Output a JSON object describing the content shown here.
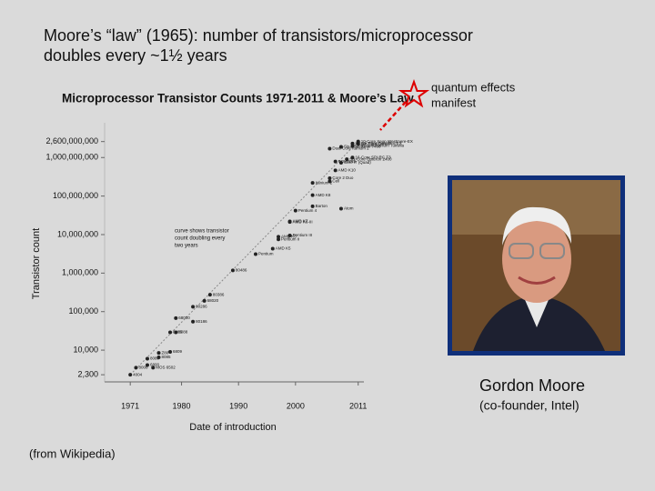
{
  "slide": {
    "title_lines": [
      "Moore’s “law” (1965): number of transistors/microprocessor",
      "doubles every ~1½  years"
    ],
    "note_lines": [
      "quantum effects",
      "manifest"
    ],
    "caption_name": "Gordon Moore",
    "caption_role": "(co-founder, Intel)",
    "source": "(from Wikipedia)"
  },
  "chart_data": {
    "type": "scatter",
    "title": "Microprocessor Transistor Counts 1971-2011 & Moore’s Law",
    "x_label": "Date of introduction",
    "y_label": "Transistor count",
    "log_y": true,
    "color": "#222222",
    "annotation": [
      "curve shows transistor",
      "count doubling every",
      "two years"
    ],
    "xlim": [
      1966.5,
      2012
    ],
    "xticks": [
      1971,
      1980,
      1990,
      2000,
      2011
    ],
    "ylim": [
      1500,
      8000000000
    ],
    "yticks": [
      {
        "value": 2300,
        "label": "2,300"
      },
      {
        "value": 10000,
        "label": "10,000"
      },
      {
        "value": 100000,
        "label": "100,000"
      },
      {
        "value": 1000000,
        "label": "1,000,000"
      },
      {
        "value": 10000000,
        "label": "10,000,000"
      },
      {
        "value": 100000000,
        "label": "100,000,000"
      },
      {
        "value": 1000000000,
        "label": "1,000,000,000"
      },
      {
        "value": 2600000000,
        "label": "2,600,000,000"
      }
    ],
    "trend": {
      "x": [
        1971,
        2011
      ],
      "values": [
        2300,
        2600000000
      ]
    },
    "point_labels": [
      "4004",
      "8008",
      "8080",
      "6800",
      "MOS 6502",
      "Z80",
      "8085",
      "8086",
      "6809",
      "8088",
      "68000",
      "80186",
      "80286",
      "68020",
      "80386",
      "80486",
      "Pentium",
      "AMD K5",
      "Pentium II",
      "AMD K6",
      "Pentium III",
      "AMD K6-III",
      "AMD K7",
      "Pentium 4",
      "Barton",
      "Atom",
      "AMD K8",
      "Itanium 2",
      "Cell",
      "Core 2 Duo",
      "AMD K10",
      "Core i7 (Quad)",
      "POWER6",
      "Six-Core Opteron 2400",
      "Dual-Core Itanium 2",
      "Six-Core Xeon 7400",
      "Quad-core Itanium Tukwila",
      "16-Core SPARC T3",
      "Six-Core Core i7",
      "8-core Xeon Nehalem-EX",
      "10-Core Xeon Westmere-EX"
    ],
    "x": [
      1971,
      1972,
      1974,
      1974,
      1975,
      1976,
      1976,
      1978,
      1978,
      1979,
      1979,
      1982,
      1982,
      1984,
      1985,
      1989,
      1993,
      1996,
      1997,
      1997,
      1999,
      1999,
      1999,
      2000,
      2003,
      2008,
      2003,
      2003,
      2006,
      2006,
      2007,
      2008,
      2007,
      2009,
      2006,
      2008,
      2010,
      2010,
      2011,
      2010,
      2011
    ],
    "values": [
      2300,
      3500,
      6000,
      4100,
      3510,
      8500,
      6500,
      29000,
      9000,
      29000,
      68000,
      55000,
      134000,
      190000,
      275000,
      1180000,
      3100000,
      4300000,
      7500000,
      8800000,
      9500000,
      21300000,
      22000000,
      42000000,
      54300000,
      47000000,
      105900000,
      220000000,
      241000000,
      291000000,
      463000000,
      731000000,
      789000000,
      904000000,
      1700000000,
      1900000000,
      2000000000,
      1000000000,
      2270000000,
      2300000000,
      2600000000
    ]
  }
}
